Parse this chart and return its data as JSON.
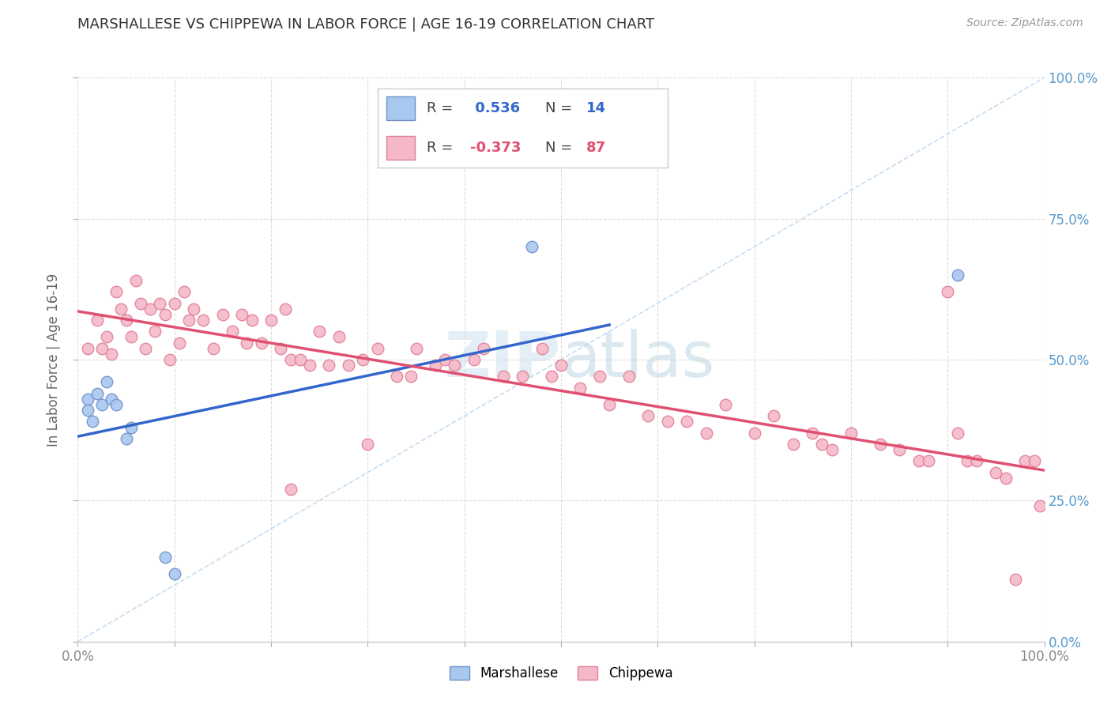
{
  "title": "MARSHALLESE VS CHIPPEWA IN LABOR FORCE | AGE 16-19 CORRELATION CHART",
  "source": "Source: ZipAtlas.com",
  "ylabel": "In Labor Force | Age 16-19",
  "xlim": [
    0.0,
    1.0
  ],
  "ylim": [
    0.0,
    1.0
  ],
  "xticks": [
    0.0,
    0.1,
    0.2,
    0.3,
    0.4,
    0.5,
    0.6,
    0.7,
    0.8,
    0.9,
    1.0
  ],
  "yticks": [
    0.0,
    0.25,
    0.5,
    0.75,
    1.0
  ],
  "yticklabels_right": [
    "0.0%",
    "25.0%",
    "50.0%",
    "75.0%",
    "100.0%"
  ],
  "marshallese_color": "#a8c8f0",
  "chippewa_color": "#f5b8c8",
  "marshallese_edge": "#7090c8",
  "chippewa_edge": "#e08098",
  "trend_marshallese": "#3366cc",
  "trend_chippewa": "#e05070",
  "dashed_line_color": "#b8d4ee",
  "R_marshallese": 0.536,
  "N_marshallese": 14,
  "R_chippewa": -0.373,
  "N_chippewa": 87,
  "marshallese_x": [
    0.01,
    0.01,
    0.015,
    0.02,
    0.025,
    0.03,
    0.035,
    0.04,
    0.05,
    0.055,
    0.09,
    0.1,
    0.47,
    0.91
  ],
  "marshallese_y": [
    0.43,
    0.41,
    0.39,
    0.44,
    0.42,
    0.46,
    0.43,
    0.42,
    0.36,
    0.38,
    0.15,
    0.12,
    0.7,
    0.65
  ],
  "chippewa_x": [
    0.01,
    0.02,
    0.025,
    0.03,
    0.035,
    0.04,
    0.045,
    0.05,
    0.055,
    0.06,
    0.065,
    0.07,
    0.075,
    0.08,
    0.085,
    0.09,
    0.095,
    0.1,
    0.105,
    0.11,
    0.115,
    0.12,
    0.13,
    0.14,
    0.15,
    0.16,
    0.17,
    0.175,
    0.18,
    0.19,
    0.2,
    0.21,
    0.215,
    0.22,
    0.23,
    0.25,
    0.26,
    0.27,
    0.28,
    0.3,
    0.31,
    0.33,
    0.35,
    0.37,
    0.38,
    0.39,
    0.41,
    0.42,
    0.44,
    0.46,
    0.48,
    0.49,
    0.5,
    0.52,
    0.54,
    0.55,
    0.57,
    0.59,
    0.61,
    0.63,
    0.65,
    0.67,
    0.7,
    0.72,
    0.74,
    0.76,
    0.77,
    0.78,
    0.8,
    0.83,
    0.85,
    0.87,
    0.88,
    0.9,
    0.91,
    0.92,
    0.93,
    0.95,
    0.96,
    0.97,
    0.98,
    0.99,
    0.995,
    0.22,
    0.24,
    0.295,
    0.345
  ],
  "chippewa_y": [
    0.52,
    0.57,
    0.52,
    0.54,
    0.51,
    0.62,
    0.59,
    0.57,
    0.54,
    0.64,
    0.6,
    0.52,
    0.59,
    0.55,
    0.6,
    0.58,
    0.5,
    0.6,
    0.53,
    0.62,
    0.57,
    0.59,
    0.57,
    0.52,
    0.58,
    0.55,
    0.58,
    0.53,
    0.57,
    0.53,
    0.57,
    0.52,
    0.59,
    0.5,
    0.5,
    0.55,
    0.49,
    0.54,
    0.49,
    0.35,
    0.52,
    0.47,
    0.52,
    0.49,
    0.5,
    0.49,
    0.5,
    0.52,
    0.47,
    0.47,
    0.52,
    0.47,
    0.49,
    0.45,
    0.47,
    0.42,
    0.47,
    0.4,
    0.39,
    0.39,
    0.37,
    0.42,
    0.37,
    0.4,
    0.35,
    0.37,
    0.35,
    0.34,
    0.37,
    0.35,
    0.34,
    0.32,
    0.32,
    0.62,
    0.37,
    0.32,
    0.32,
    0.3,
    0.29,
    0.11,
    0.32,
    0.32,
    0.24,
    0.27,
    0.49,
    0.5,
    0.47
  ]
}
